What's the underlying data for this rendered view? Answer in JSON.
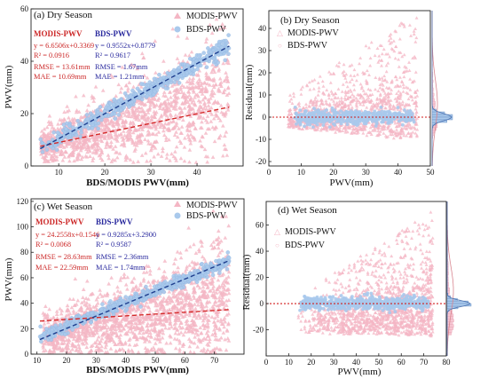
{
  "colors": {
    "modis": "#f4b6c4",
    "bds": "#a9c9ec",
    "modis_text": "#cc2828",
    "bds_text": "#2a2a9e",
    "modis_fit": "#d42a2a",
    "bds_fit": "#1f3f8f",
    "zero_line": "#d21e1e",
    "hist_modis": "#f6c6d2",
    "hist_bds": "#a9c9ec",
    "hist_modis_curve": "#d8848e",
    "hist_bds_curve": "#4c72b0"
  },
  "chart_data": [
    {
      "id": "a",
      "type": "scatter",
      "title": "(a)  Dry Season",
      "xlabel": "BDS/MODIS PWV(mm)",
      "ylabel": "PWV(mm)",
      "xlim": [
        4,
        50
      ],
      "ylim": [
        0,
        60
      ],
      "xticks": [
        10,
        20,
        30,
        40
      ],
      "yticks": [
        0,
        20,
        40,
        60
      ],
      "legend": [
        "MODIS-PWV",
        "BDS-PWV"
      ],
      "legend_position": "top-right",
      "stats": {
        "modis": {
          "name": "MODIS-PWV",
          "eq": "y = 6.6506x+0.3369",
          "r2": "R² = 0.0916",
          "rmse": "RMSE = 13.61mm",
          "mae": "MAE = 10.69mm"
        },
        "bds": {
          "name": "BDS-PWV",
          "eq": "y = 0.9552x+0.8779",
          "r2": "R² = 0.9617",
          "rmse": "RMSE = 1.67mm",
          "mae": "MAE = 1.21mm"
        }
      },
      "fit_lines": {
        "modis": [
          [
            6,
            7.5
          ],
          [
            47,
            22.5
          ]
        ],
        "bds": [
          [
            6,
            6.6
          ],
          [
            47,
            45.8
          ]
        ]
      }
    },
    {
      "id": "b",
      "type": "scatter",
      "title": "(b) Dry Season",
      "xlabel": "PWV(mm)",
      "ylabel": "Residual(mm)",
      "xlim": [
        0,
        50
      ],
      "ylim": [
        -22,
        48
      ],
      "xticks": [
        0,
        10,
        20,
        30,
        40,
        50
      ],
      "yticks": [
        -20,
        -10,
        0,
        10,
        20,
        30,
        40
      ],
      "legend": [
        "MODIS-PWV",
        "BDS-PWV"
      ],
      "legend_position": "top-left",
      "zero_line": 0,
      "marginal_histogram": true
    },
    {
      "id": "c",
      "type": "scatter",
      "title": "(c)  Wet Season",
      "xlabel": "BDS/MODIS PWV(mm)",
      "ylabel": "PWV(mm)",
      "xlim": [
        8,
        80
      ],
      "ylim": [
        0,
        122
      ],
      "xticks": [
        10,
        20,
        30,
        40,
        50,
        60,
        70
      ],
      "yticks": [
        0,
        20,
        40,
        60,
        80,
        100,
        120
      ],
      "legend": [
        "MODIS-PWV",
        "BDS-PWV"
      ],
      "legend_position": "top-right",
      "stats": {
        "modis": {
          "name": "MODIS-PWV",
          "eq": "y = 24.2558x+0.1546",
          "r2": "R² = 0.0068",
          "rmse": "RMSE = 28.63mm",
          "mae": "MAE = 22.59mm"
        },
        "bds": {
          "name": "BDS-PWV",
          "eq": "y = 0.9285x+3.2900",
          "r2": "R² = 0.9587",
          "rmse": "RMSE = 2.36mm",
          "mae": "MAE = 1.74mm"
        }
      },
      "fit_lines": {
        "modis": [
          [
            11,
            26
          ],
          [
            75,
            35
          ]
        ],
        "bds": [
          [
            11,
            11.5
          ],
          [
            75,
            73.5
          ]
        ]
      }
    },
    {
      "id": "d",
      "type": "scatter",
      "title": "(d) Wet Season",
      "xlabel": "PWV(mm)",
      "ylabel": "Residual(mm)",
      "xlim": [
        0,
        80
      ],
      "ylim": [
        -40,
        78
      ],
      "xticks": [
        0,
        10,
        20,
        30,
        40,
        50,
        60,
        70,
        80
      ],
      "yticks": [
        -20,
        0,
        20,
        40,
        60
      ],
      "legend": [
        "MODIS-PWV",
        "BDS-PWV"
      ],
      "legend_position": "top-left",
      "zero_line": 0,
      "marginal_histogram": true
    }
  ]
}
